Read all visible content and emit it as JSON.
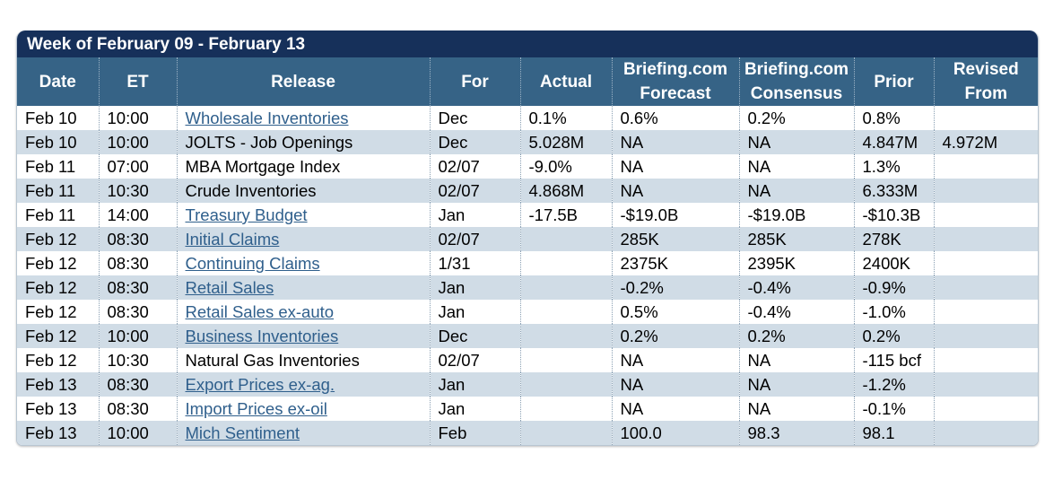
{
  "week_title": "Week of February 09 - February 13",
  "headers": {
    "date": "Date",
    "et": "ET",
    "release": "Release",
    "for": "For",
    "actual": "Actual",
    "forecast_1": "Briefing.com",
    "forecast_2": "Forecast",
    "consensus_1": "Briefing.com",
    "consensus_2": "Consensus",
    "prior": "Prior",
    "revised_1": "Revised",
    "revised_2": "From"
  },
  "rows": [
    {
      "date": "Feb 10",
      "et": "10:00",
      "release": "Wholesale Inventories",
      "linked": true,
      "for": "Dec",
      "actual": "0.1%",
      "forecast": "0.6%",
      "consensus": "0.2%",
      "prior": "0.8%",
      "revised": ""
    },
    {
      "date": "Feb 10",
      "et": "10:00",
      "release": "JOLTS - Job Openings",
      "linked": false,
      "for": "Dec",
      "actual": "5.028M",
      "forecast": "NA",
      "consensus": "NA",
      "prior": "4.847M",
      "revised": "4.972M"
    },
    {
      "date": "Feb 11",
      "et": "07:00",
      "release": "MBA Mortgage Index",
      "linked": false,
      "for": "02/07",
      "actual": "-9.0%",
      "forecast": "NA",
      "consensus": "NA",
      "prior": "1.3%",
      "revised": ""
    },
    {
      "date": "Feb 11",
      "et": "10:30",
      "release": "Crude Inventories",
      "linked": false,
      "for": "02/07",
      "actual": "4.868M",
      "forecast": "NA",
      "consensus": "NA",
      "prior": "6.333M",
      "revised": ""
    },
    {
      "date": "Feb 11",
      "et": "14:00",
      "release": "Treasury Budget",
      "linked": true,
      "for": "Jan",
      "actual": "-17.5B",
      "forecast": "-$19.0B",
      "consensus": "-$19.0B",
      "prior": "-$10.3B",
      "revised": ""
    },
    {
      "date": "Feb 12",
      "et": "08:30",
      "release": "Initial Claims",
      "linked": true,
      "for": "02/07",
      "actual": "",
      "forecast": "285K",
      "consensus": "285K",
      "prior": "278K",
      "revised": ""
    },
    {
      "date": "Feb 12",
      "et": "08:30",
      "release": "Continuing Claims",
      "linked": true,
      "for": "1/31",
      "actual": "",
      "forecast": "2375K",
      "consensus": "2395K",
      "prior": "2400K",
      "revised": ""
    },
    {
      "date": "Feb 12",
      "et": "08:30",
      "release": "Retail Sales",
      "linked": true,
      "for": "Jan",
      "actual": "",
      "forecast": "-0.2%",
      "consensus": "-0.4%",
      "prior": "-0.9%",
      "revised": ""
    },
    {
      "date": "Feb 12",
      "et": "08:30",
      "release": "Retail Sales ex-auto",
      "linked": true,
      "for": "Jan",
      "actual": "",
      "forecast": "0.5%",
      "consensus": "-0.4%",
      "prior": "-1.0%",
      "revised": ""
    },
    {
      "date": "Feb 12",
      "et": "10:00",
      "release": "Business Inventories",
      "linked": true,
      "for": "Dec",
      "actual": "",
      "forecast": "0.2%",
      "consensus": "0.2%",
      "prior": "0.2%",
      "revised": ""
    },
    {
      "date": "Feb 12",
      "et": "10:30",
      "release": "Natural Gas Inventories",
      "linked": false,
      "for": "02/07",
      "actual": "",
      "forecast": "NA",
      "consensus": "NA",
      "prior": "-115 bcf",
      "revised": ""
    },
    {
      "date": "Feb 13",
      "et": "08:30",
      "release": "Export Prices ex-ag.",
      "linked": true,
      "for": "Jan",
      "actual": "",
      "forecast": "NA",
      "consensus": "NA",
      "prior": "-1.2%",
      "revised": ""
    },
    {
      "date": "Feb 13",
      "et": "08:30",
      "release": "Import Prices ex-oil",
      "linked": true,
      "for": "Jan",
      "actual": "",
      "forecast": "NA",
      "consensus": "NA",
      "prior": "-0.1%",
      "revised": ""
    },
    {
      "date": "Feb 13",
      "et": "10:00",
      "release": "Mich Sentiment",
      "linked": true,
      "for": "Feb",
      "actual": "",
      "forecast": "100.0",
      "consensus": "98.3",
      "prior": "98.1",
      "revised": ""
    }
  ],
  "colors": {
    "title_bar": "#16305a",
    "header_bg": "#366386",
    "stripe": "#d0dce6",
    "link": "#2f5f8c"
  }
}
